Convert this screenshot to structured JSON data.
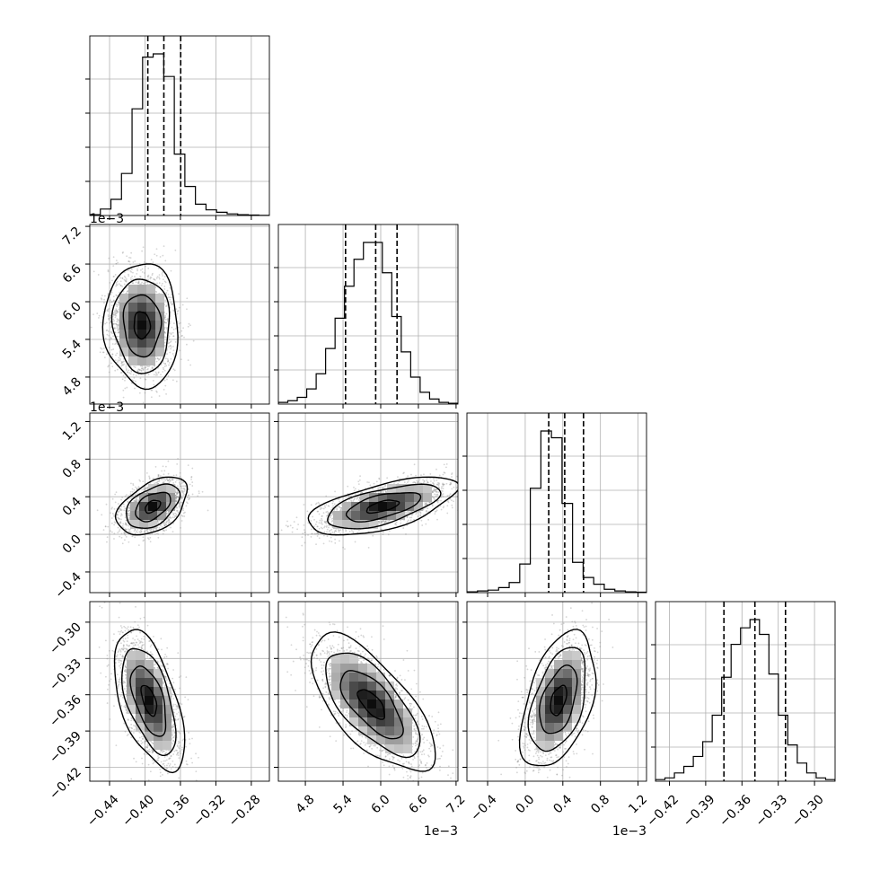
{
  "chart_data": {
    "type": "corner",
    "title": "",
    "parameters": [
      {
        "name": "",
        "range": [
          -0.4623,
          -0.2596
        ],
        "ticks": [
          -0.44,
          -0.4,
          -0.36,
          -0.32,
          -0.28
        ],
        "tick_labels": [
          "−0.44",
          "−0.40",
          "−0.36",
          "−0.32",
          "−0.28"
        ],
        "quantiles": [
          -0.3968,
          -0.3787,
          -0.3597
        ],
        "scale_note": "",
        "hist": [
          0.005,
          0.04,
          0.1,
          0.26,
          0.66,
          0.98,
          1.0,
          0.86,
          0.38,
          0.18,
          0.07,
          0.035,
          0.02,
          0.01,
          0.005,
          0.003,
          0.001
        ]
      },
      {
        "name": "",
        "range": [
          4.37,
          7.23
        ],
        "ticks": [
          4.8,
          5.4,
          6.0,
          6.6,
          7.2
        ],
        "tick_labels": [
          "4.8",
          "5.4",
          "6.0",
          "6.6",
          "7.2"
        ],
        "quantiles": [
          5.44,
          5.92,
          6.26
        ],
        "scale_note": "1e−3",
        "hist": [
          0.01,
          0.02,
          0.04,
          0.09,
          0.18,
          0.33,
          0.51,
          0.7,
          0.86,
          0.96,
          0.96,
          0.78,
          0.52,
          0.31,
          0.16,
          0.07,
          0.03,
          0.01,
          0.005
        ]
      },
      {
        "name": "",
        "range": [
          -0.62,
          1.29
        ],
        "ticks": [
          -0.4,
          0.0,
          0.4,
          0.8,
          1.2
        ],
        "tick_labels": [
          "−0.4",
          "0.0",
          "0.4",
          "0.8",
          "1.2"
        ],
        "quantiles": [
          0.25,
          0.42,
          0.62
        ],
        "scale_note": "1e−3",
        "hist": [
          0.005,
          0.01,
          0.015,
          0.03,
          0.06,
          0.17,
          0.62,
          0.96,
          0.92,
          0.53,
          0.18,
          0.09,
          0.05,
          0.02,
          0.01,
          0.005,
          0.003
        ]
      },
      {
        "name": "",
        "range": [
          -0.4315,
          -0.283
        ],
        "ticks": [
          -0.42,
          -0.39,
          -0.36,
          -0.33,
          -0.3
        ],
        "tick_labels": [
          "−0.42",
          "−0.39",
          "−0.36",
          "−0.33",
          "−0.30"
        ],
        "quantiles": [
          -0.3749,
          -0.3493,
          -0.324
        ],
        "scale_note": "",
        "hist": [
          0.01,
          0.02,
          0.05,
          0.09,
          0.15,
          0.24,
          0.4,
          0.63,
          0.83,
          0.93,
          0.98,
          0.89,
          0.65,
          0.4,
          0.22,
          0.11,
          0.05,
          0.02,
          0.01
        ]
      }
    ],
    "grid": true,
    "colors": {
      "line": "#000000",
      "grid": "#b0b0b0",
      "scatter": "#888888"
    }
  }
}
